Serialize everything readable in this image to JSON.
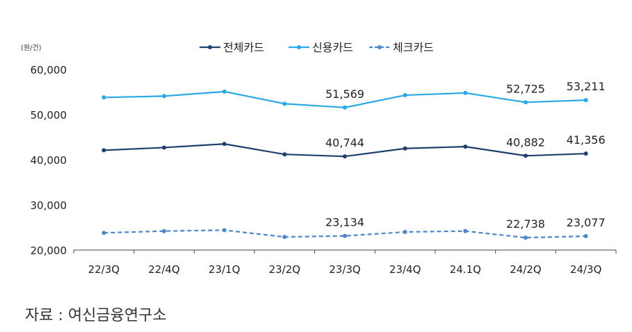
{
  "unit_label": "(원/건)",
  "source": "자료 : 여신금융연구소",
  "chart_data": {
    "type": "line",
    "categories": [
      "22/3Q",
      "22/4Q",
      "23/1Q",
      "23/2Q",
      "23/3Q",
      "23/4Q",
      "24.1Q",
      "24/2Q",
      "24/3Q"
    ],
    "ylim": [
      20000,
      60000
    ],
    "yticks": [
      20000,
      30000,
      40000,
      50000,
      60000
    ],
    "ytick_labels": [
      "20,000",
      "30,000",
      "40,000",
      "50,000",
      "60,000"
    ],
    "legend_position": "top-center",
    "grid": false,
    "series": [
      {
        "name": "전체카드",
        "color": "#1f3f6e",
        "dashed": false,
        "values": [
          42100,
          42700,
          43500,
          41200,
          40744,
          42500,
          42900,
          40882,
          41356
        ],
        "labels": [
          null,
          null,
          null,
          null,
          "40,744",
          null,
          null,
          "40,882",
          "41,356"
        ]
      },
      {
        "name": "신용카드",
        "color": "#29a8e6",
        "dashed": false,
        "values": [
          53800,
          54100,
          55100,
          52400,
          51569,
          54300,
          54800,
          52725,
          53211
        ],
        "labels": [
          null,
          null,
          null,
          null,
          "51,569",
          null,
          null,
          "52,725",
          "53,211"
        ]
      },
      {
        "name": "체크카드",
        "color": "#4b86c9",
        "dashed": true,
        "values": [
          23800,
          24200,
          24400,
          22900,
          23134,
          24000,
          24200,
          22738,
          23077
        ],
        "labels": [
          null,
          null,
          null,
          null,
          "23,134",
          null,
          null,
          "22,738",
          "23,077"
        ]
      }
    ]
  }
}
